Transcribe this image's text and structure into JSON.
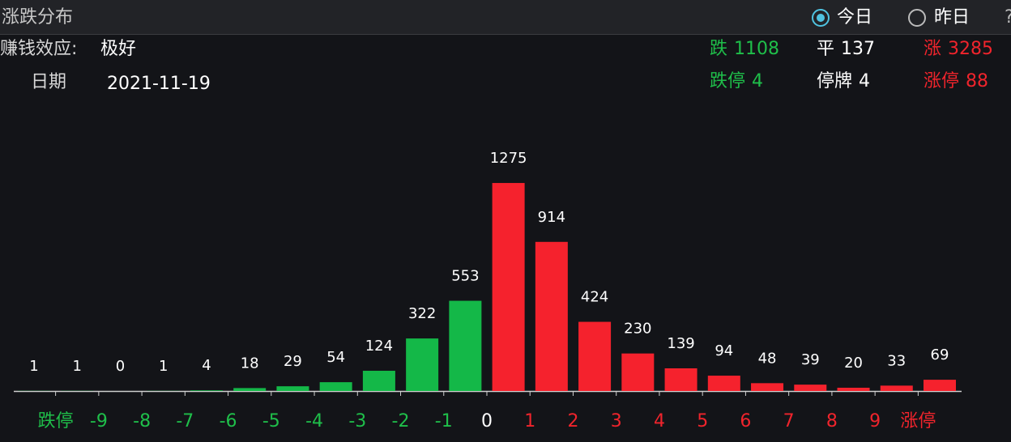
{
  "header": {
    "title": "涨跌分布",
    "options": [
      {
        "label": "今日",
        "selected": true
      },
      {
        "label": "昨日",
        "selected": false
      }
    ],
    "help": "?"
  },
  "info": {
    "effect_label": "赚钱效应:",
    "effect_value": "极好",
    "date_label": "日期",
    "date_value": "2021-11-19"
  },
  "stats": [
    [
      {
        "label": "跌",
        "value": 1108,
        "color": "#1fbf4a"
      },
      {
        "label": "平",
        "value": 137,
        "color": "#ffffff"
      },
      {
        "label": "涨",
        "value": 3285,
        "color": "#f0242c"
      }
    ],
    [
      {
        "label": "跌停",
        "value": 4,
        "color": "#1fbf4a"
      },
      {
        "label": "停牌",
        "value": 4,
        "color": "#ffffff"
      },
      {
        "label": "涨停",
        "value": 88,
        "color": "#f0242c"
      }
    ]
  ],
  "chart_data": {
    "type": "bar",
    "x_tick_labels": [
      "跌停",
      "-9",
      "-8",
      "-7",
      "-6",
      "-5",
      "-4",
      "-3",
      "-2",
      "-1",
      "0",
      "1",
      "2",
      "3",
      "4",
      "5",
      "6",
      "7",
      "8",
      "9",
      "涨停"
    ],
    "x_tick_colors": [
      "#1fbf4a",
      "#1fbf4a",
      "#1fbf4a",
      "#1fbf4a",
      "#1fbf4a",
      "#1fbf4a",
      "#1fbf4a",
      "#1fbf4a",
      "#1fbf4a",
      "#1fbf4a",
      "#ffffff",
      "#f0242c",
      "#f0242c",
      "#f0242c",
      "#f0242c",
      "#f0242c",
      "#f0242c",
      "#f0242c",
      "#f0242c",
      "#f0242c",
      "#f0242c"
    ],
    "values": [
      1,
      1,
      0,
      1,
      4,
      18,
      29,
      54,
      124,
      322,
      553,
      1275,
      914,
      424,
      230,
      139,
      94,
      48,
      39,
      20,
      33,
      69
    ],
    "colors": [
      "#14b848",
      "#14b848",
      "#14b848",
      "#14b848",
      "#14b848",
      "#14b848",
      "#14b848",
      "#14b848",
      "#14b848",
      "#14b848",
      "#14b848",
      "#f5222d",
      "#f5222d",
      "#f5222d",
      "#f5222d",
      "#f5222d",
      "#f5222d",
      "#f5222d",
      "#f5222d",
      "#f5222d",
      "#f5222d",
      "#f5222d"
    ],
    "ylim": [
      0,
      1300
    ]
  }
}
